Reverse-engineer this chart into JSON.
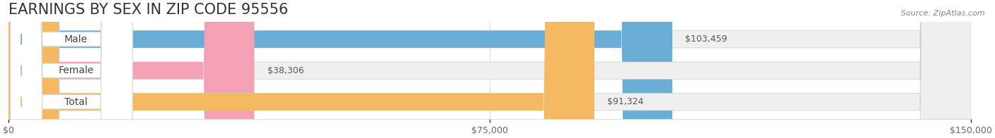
{
  "title": "EARNINGS BY SEX IN ZIP CODE 95556",
  "source": "Source: ZipAtlas.com",
  "categories": [
    "Male",
    "Female",
    "Total"
  ],
  "values": [
    103459,
    38306,
    91324
  ],
  "bar_colors": [
    "#6aaed6",
    "#f4a0b5",
    "#f5b961"
  ],
  "bar_bg_color": "#eeeeee",
  "label_colors": [
    "#6aaed6",
    "#f4a0b5",
    "#f5b961"
  ],
  "xlim": [
    0,
    150000
  ],
  "xticks": [
    0,
    75000,
    150000
  ],
  "xtick_labels": [
    "$0",
    "$75,000",
    "$150,000"
  ],
  "value_labels": [
    "$103,459",
    "$38,306",
    "$91,324"
  ],
  "title_fontsize": 15,
  "tick_fontsize": 9,
  "value_fontsize": 9,
  "cat_fontsize": 10,
  "source_fontsize": 8,
  "fig_bg_color": "#ffffff",
  "bar_bg_full": 150000
}
